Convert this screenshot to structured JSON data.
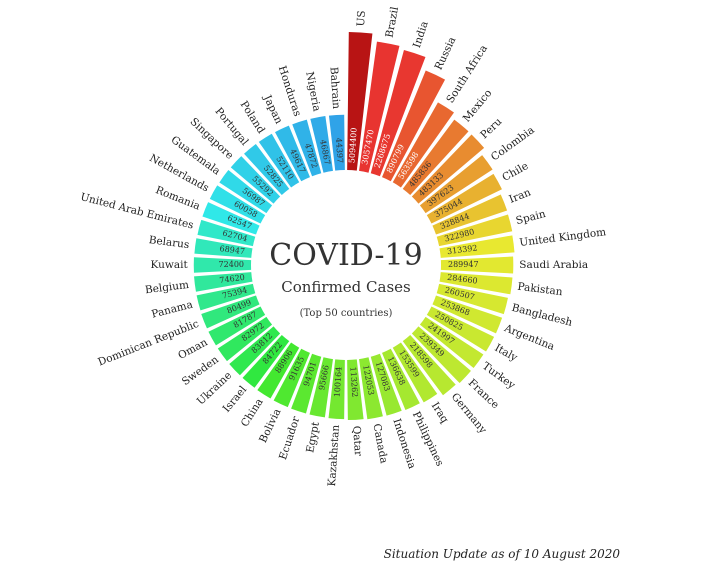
{
  "chart_data": {
    "type": "radial-bar",
    "title": "COVID-19",
    "subtitle": "Confirmed Cases",
    "note": "(Top 50 countries)",
    "footer": "Situation Update as of 10 August 2020",
    "categories": [
      "US",
      "Brazil",
      "India",
      "Russia",
      "South Africa",
      "Mexico",
      "Peru",
      "Colombia",
      "Chile",
      "Iran",
      "Spain",
      "United Kingdom",
      "Saudi Arabia",
      "Pakistan",
      "Bangladesh",
      "Argentina",
      "Italy",
      "Turkey",
      "France",
      "Germany",
      "Iraq",
      "Philippines",
      "Indonesia",
      "Canada",
      "Qatar",
      "Kazakhstan",
      "Egypt",
      "Ecuador",
      "Bolivia",
      "China",
      "Israel",
      "Ukraine",
      "Sweden",
      "Oman",
      "Dominican Republic",
      "Panama",
      "Belgium",
      "Kuwait",
      "Belarus",
      "United Arab Emirates",
      "Romania",
      "Netherlands",
      "Guatemala",
      "Singapore",
      "Portugal",
      "Poland",
      "Japan",
      "Honduras",
      "Nigeria",
      "Bahrain"
    ],
    "values": [
      5094400,
      3057470,
      2268675,
      890799,
      563598,
      485836,
      483133,
      397623,
      375044,
      328844,
      322980,
      313392,
      289947,
      284660,
      260507,
      253868,
      250825,
      241997,
      239349,
      218598,
      153599,
      136638,
      127083,
      122053,
      113262,
      100164,
      95666,
      94701,
      91635,
      88906,
      84722,
      83812,
      82972,
      81787,
      80499,
      75394,
      74620,
      72400,
      68947,
      62704,
      62547,
      60058,
      56987,
      55292,
      52825,
      52110,
      49617,
      47872,
      46867,
      44397
    ],
    "value_labels": [
      "5094400",
      "3057470",
      "2268675",
      "890799",
      "563598",
      "485836",
      "483133",
      "397623",
      "375044",
      "328844",
      "322980",
      "313392",
      "289947",
      "284660",
      "260507",
      "253868",
      "250825",
      "241997",
      "239349",
      "218598",
      "153599",
      "136638",
      "127083",
      "122053",
      "113262",
      "100164",
      "95666",
      "94701",
      "91635",
      "88906",
      "84722",
      "83812",
      "82972",
      "81787",
      "80499",
      "75394",
      "74620",
      "72400",
      "68947",
      "62704",
      "62547",
      "60058",
      "56987",
      "55292",
      "52825",
      "52110",
      "49617",
      "47872",
      "46867",
      "44397"
    ]
  }
}
